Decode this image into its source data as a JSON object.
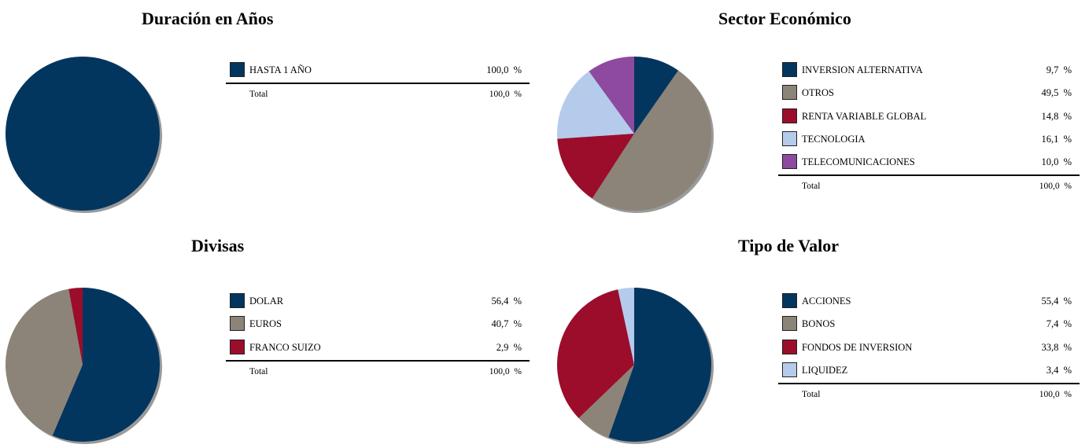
{
  "colors": {
    "navy": "#03365f",
    "taupe": "#8c8479",
    "crimson": "#9c0d2b",
    "light_blue": "#b5cbec",
    "purple": "#8e4a9e",
    "shadow": "#9a9a9a"
  },
  "panels": [
    {
      "title": "Duración en Años",
      "total_label": "Total",
      "total_value": "100,0  %",
      "items": [
        {
          "label": "HASTA 1 AÑO",
          "value_text": "100,0  %",
          "value": 100.0,
          "color": "#03365f"
        }
      ]
    },
    {
      "title": "Sector Económico",
      "total_label": "Total",
      "total_value": "100,0  %",
      "items": [
        {
          "label": "INVERSION ALTERNATIVA",
          "value_text": "9,7  %",
          "value": 9.7,
          "color": "#03365f"
        },
        {
          "label": "OTROS",
          "value_text": "49,5  %",
          "value": 49.5,
          "color": "#8c8479"
        },
        {
          "label": "RENTA VARIABLE GLOBAL",
          "value_text": "14,8  %",
          "value": 14.8,
          "color": "#9c0d2b"
        },
        {
          "label": "TECNOLOGIA",
          "value_text": "16,1  %",
          "value": 16.1,
          "color": "#b5cbec"
        },
        {
          "label": "TELECOMUNICACIONES",
          "value_text": "10,0  %",
          "value": 10.0,
          "color": "#8e4a9e"
        }
      ]
    },
    {
      "title": "Divisas",
      "total_label": "Total",
      "total_value": "100,0  %",
      "items": [
        {
          "label": "DOLAR",
          "value_text": "56,4  %",
          "value": 56.4,
          "color": "#03365f"
        },
        {
          "label": "EUROS",
          "value_text": "40,7  %",
          "value": 40.7,
          "color": "#8c8479"
        },
        {
          "label": "FRANCO SUIZO",
          "value_text": "2,9  %",
          "value": 2.9,
          "color": "#9c0d2b"
        }
      ]
    },
    {
      "title": "Tipo de Valor",
      "total_label": "Total",
      "total_value": "100,0  %",
      "items": [
        {
          "label": "ACCIONES",
          "value_text": "55,4  %",
          "value": 55.4,
          "color": "#03365f"
        },
        {
          "label": "BONOS",
          "value_text": "7,4  %",
          "value": 7.4,
          "color": "#8c8479"
        },
        {
          "label": "FONDOS DE INVERSION",
          "value_text": "33,8  %",
          "value": 33.8,
          "color": "#9c0d2b"
        },
        {
          "label": "LIQUIDEZ",
          "value_text": "3,4  %",
          "value": 3.4,
          "color": "#b5cbec"
        }
      ]
    }
  ],
  "chart_data": [
    {
      "type": "pie",
      "title": "Duración en Años",
      "categories": [
        "HASTA 1 AÑO"
      ],
      "values": [
        100.0
      ]
    },
    {
      "type": "pie",
      "title": "Sector Económico",
      "categories": [
        "INVERSION ALTERNATIVA",
        "OTROS",
        "RENTA VARIABLE GLOBAL",
        "TECNOLOGIA",
        "TELECOMUNICACIONES"
      ],
      "values": [
        9.7,
        49.5,
        14.8,
        16.1,
        10.0
      ]
    },
    {
      "type": "pie",
      "title": "Divisas",
      "categories": [
        "DOLAR",
        "EUROS",
        "FRANCO SUIZO"
      ],
      "values": [
        56.4,
        40.7,
        2.9
      ]
    },
    {
      "type": "pie",
      "title": "Tipo de Valor",
      "categories": [
        "ACCIONES",
        "BONOS",
        "FONDOS DE INVERSION",
        "LIQUIDEZ"
      ],
      "values": [
        55.4,
        7.4,
        33.8,
        3.4
      ]
    }
  ]
}
